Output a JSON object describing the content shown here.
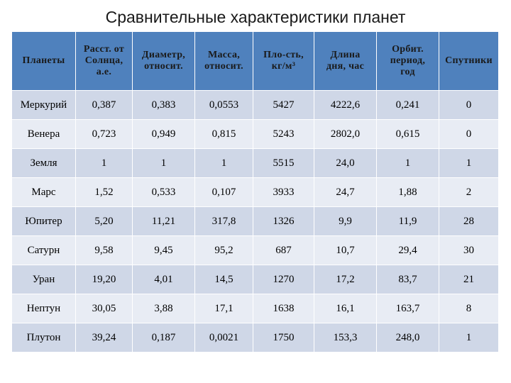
{
  "title": "Сравнительные характеристики планет",
  "headers": [
    [
      "Планеты"
    ],
    [
      "Расст. от",
      "Солнца,",
      "а.е."
    ],
    [
      "Диаметр,",
      "относит."
    ],
    [
      "Масса,",
      "относит."
    ],
    [
      "Пло-сть,",
      "кг/м³"
    ],
    [
      "Длина",
      "дня, час"
    ],
    [
      "Орбит.",
      "период,",
      "год"
    ],
    [
      "Спутники"
    ]
  ],
  "rows": [
    [
      "Меркурий",
      "0,387",
      "0,383",
      "0,0553",
      "5427",
      "4222,6",
      "0,241",
      "0"
    ],
    [
      "Венера",
      "0,723",
      "0,949",
      "0,815",
      "5243",
      "2802,0",
      "0,615",
      "0"
    ],
    [
      "Земля",
      "1",
      "1",
      "1",
      "5515",
      "24,0",
      "1",
      "1"
    ],
    [
      "Марс",
      "1,52",
      "0,533",
      "0,107",
      "3933",
      "24,7",
      "1,88",
      "2"
    ],
    [
      "Юпитер",
      "5,20",
      "11,21",
      "317,8",
      "1326",
      "9,9",
      "11,9",
      "28"
    ],
    [
      "Сатурн",
      "9,58",
      "9,45",
      "95,2",
      "687",
      "10,7",
      "29,4",
      "30"
    ],
    [
      "Уран",
      "19,20",
      "4,01",
      "14,5",
      "1270",
      "17,2",
      "83,7",
      "21"
    ],
    [
      "Нептун",
      "30,05",
      "3,88",
      "17,1",
      "1638",
      "16,1",
      "163,7",
      "8"
    ],
    [
      "Плутон",
      "39,24",
      "0,187",
      "0,0021",
      "1750",
      "153,3",
      "248,0",
      "1"
    ]
  ],
  "colors": {
    "header": "#4f81bd",
    "row_odd": "#cfd7e7",
    "row_even": "#e8ecf4"
  }
}
